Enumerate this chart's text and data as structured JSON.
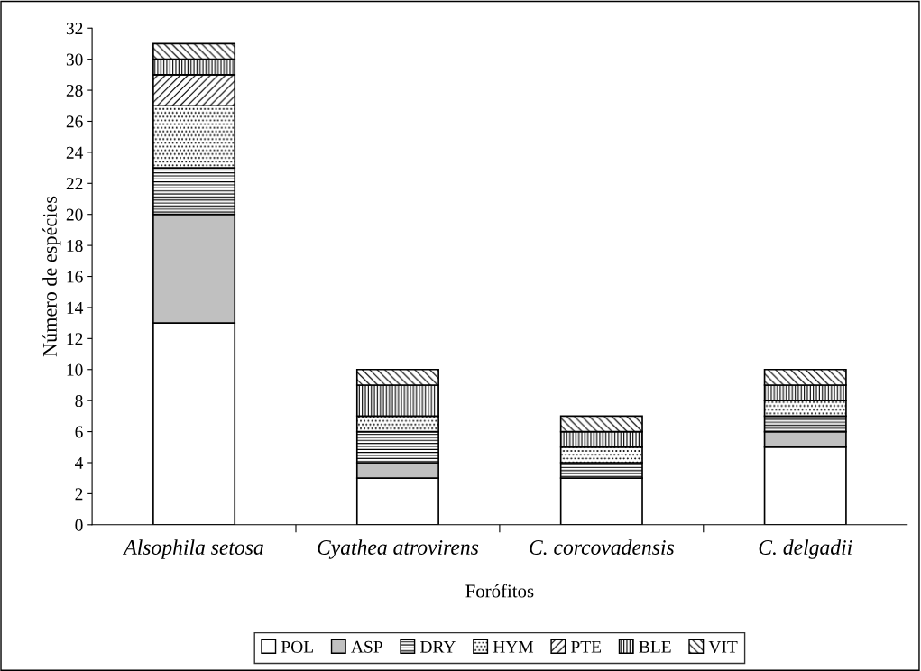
{
  "chart_data": {
    "type": "bar",
    "stacked": true,
    "xlabel": "Forófitos",
    "ylabel": "Número de espécies",
    "categories": [
      "Alsophila setosa",
      "Cyathea atrovirens",
      "C. corcovadensis",
      "C. delgadii"
    ],
    "series": [
      {
        "name": "POL",
        "color": "#ffffff",
        "values": [
          13,
          3,
          3,
          5
        ]
      },
      {
        "name": "ASP",
        "color": "#c0c0c0",
        "values": [
          7,
          1,
          0,
          1
        ]
      },
      {
        "name": "DRY",
        "color": "#000000",
        "values": [
          3,
          2,
          1,
          1
        ]
      },
      {
        "name": "HYM",
        "color": "#000000",
        "values": [
          4,
          1,
          1,
          1
        ]
      },
      {
        "name": "PTE",
        "color": "#000000",
        "values": [
          2,
          0,
          0,
          0
        ]
      },
      {
        "name": "BLE",
        "color": "#000000",
        "values": [
          1,
          2,
          1,
          1
        ]
      },
      {
        "name": "VIT",
        "color": "#000000",
        "values": [
          1,
          1,
          1,
          1
        ]
      }
    ],
    "ylim": [
      0,
      32
    ],
    "yticks": [
      0,
      2,
      4,
      6,
      8,
      10,
      12,
      14,
      16,
      18,
      20,
      22,
      24,
      26,
      28,
      30,
      32
    ],
    "grid": false,
    "legend": "bottom"
  }
}
